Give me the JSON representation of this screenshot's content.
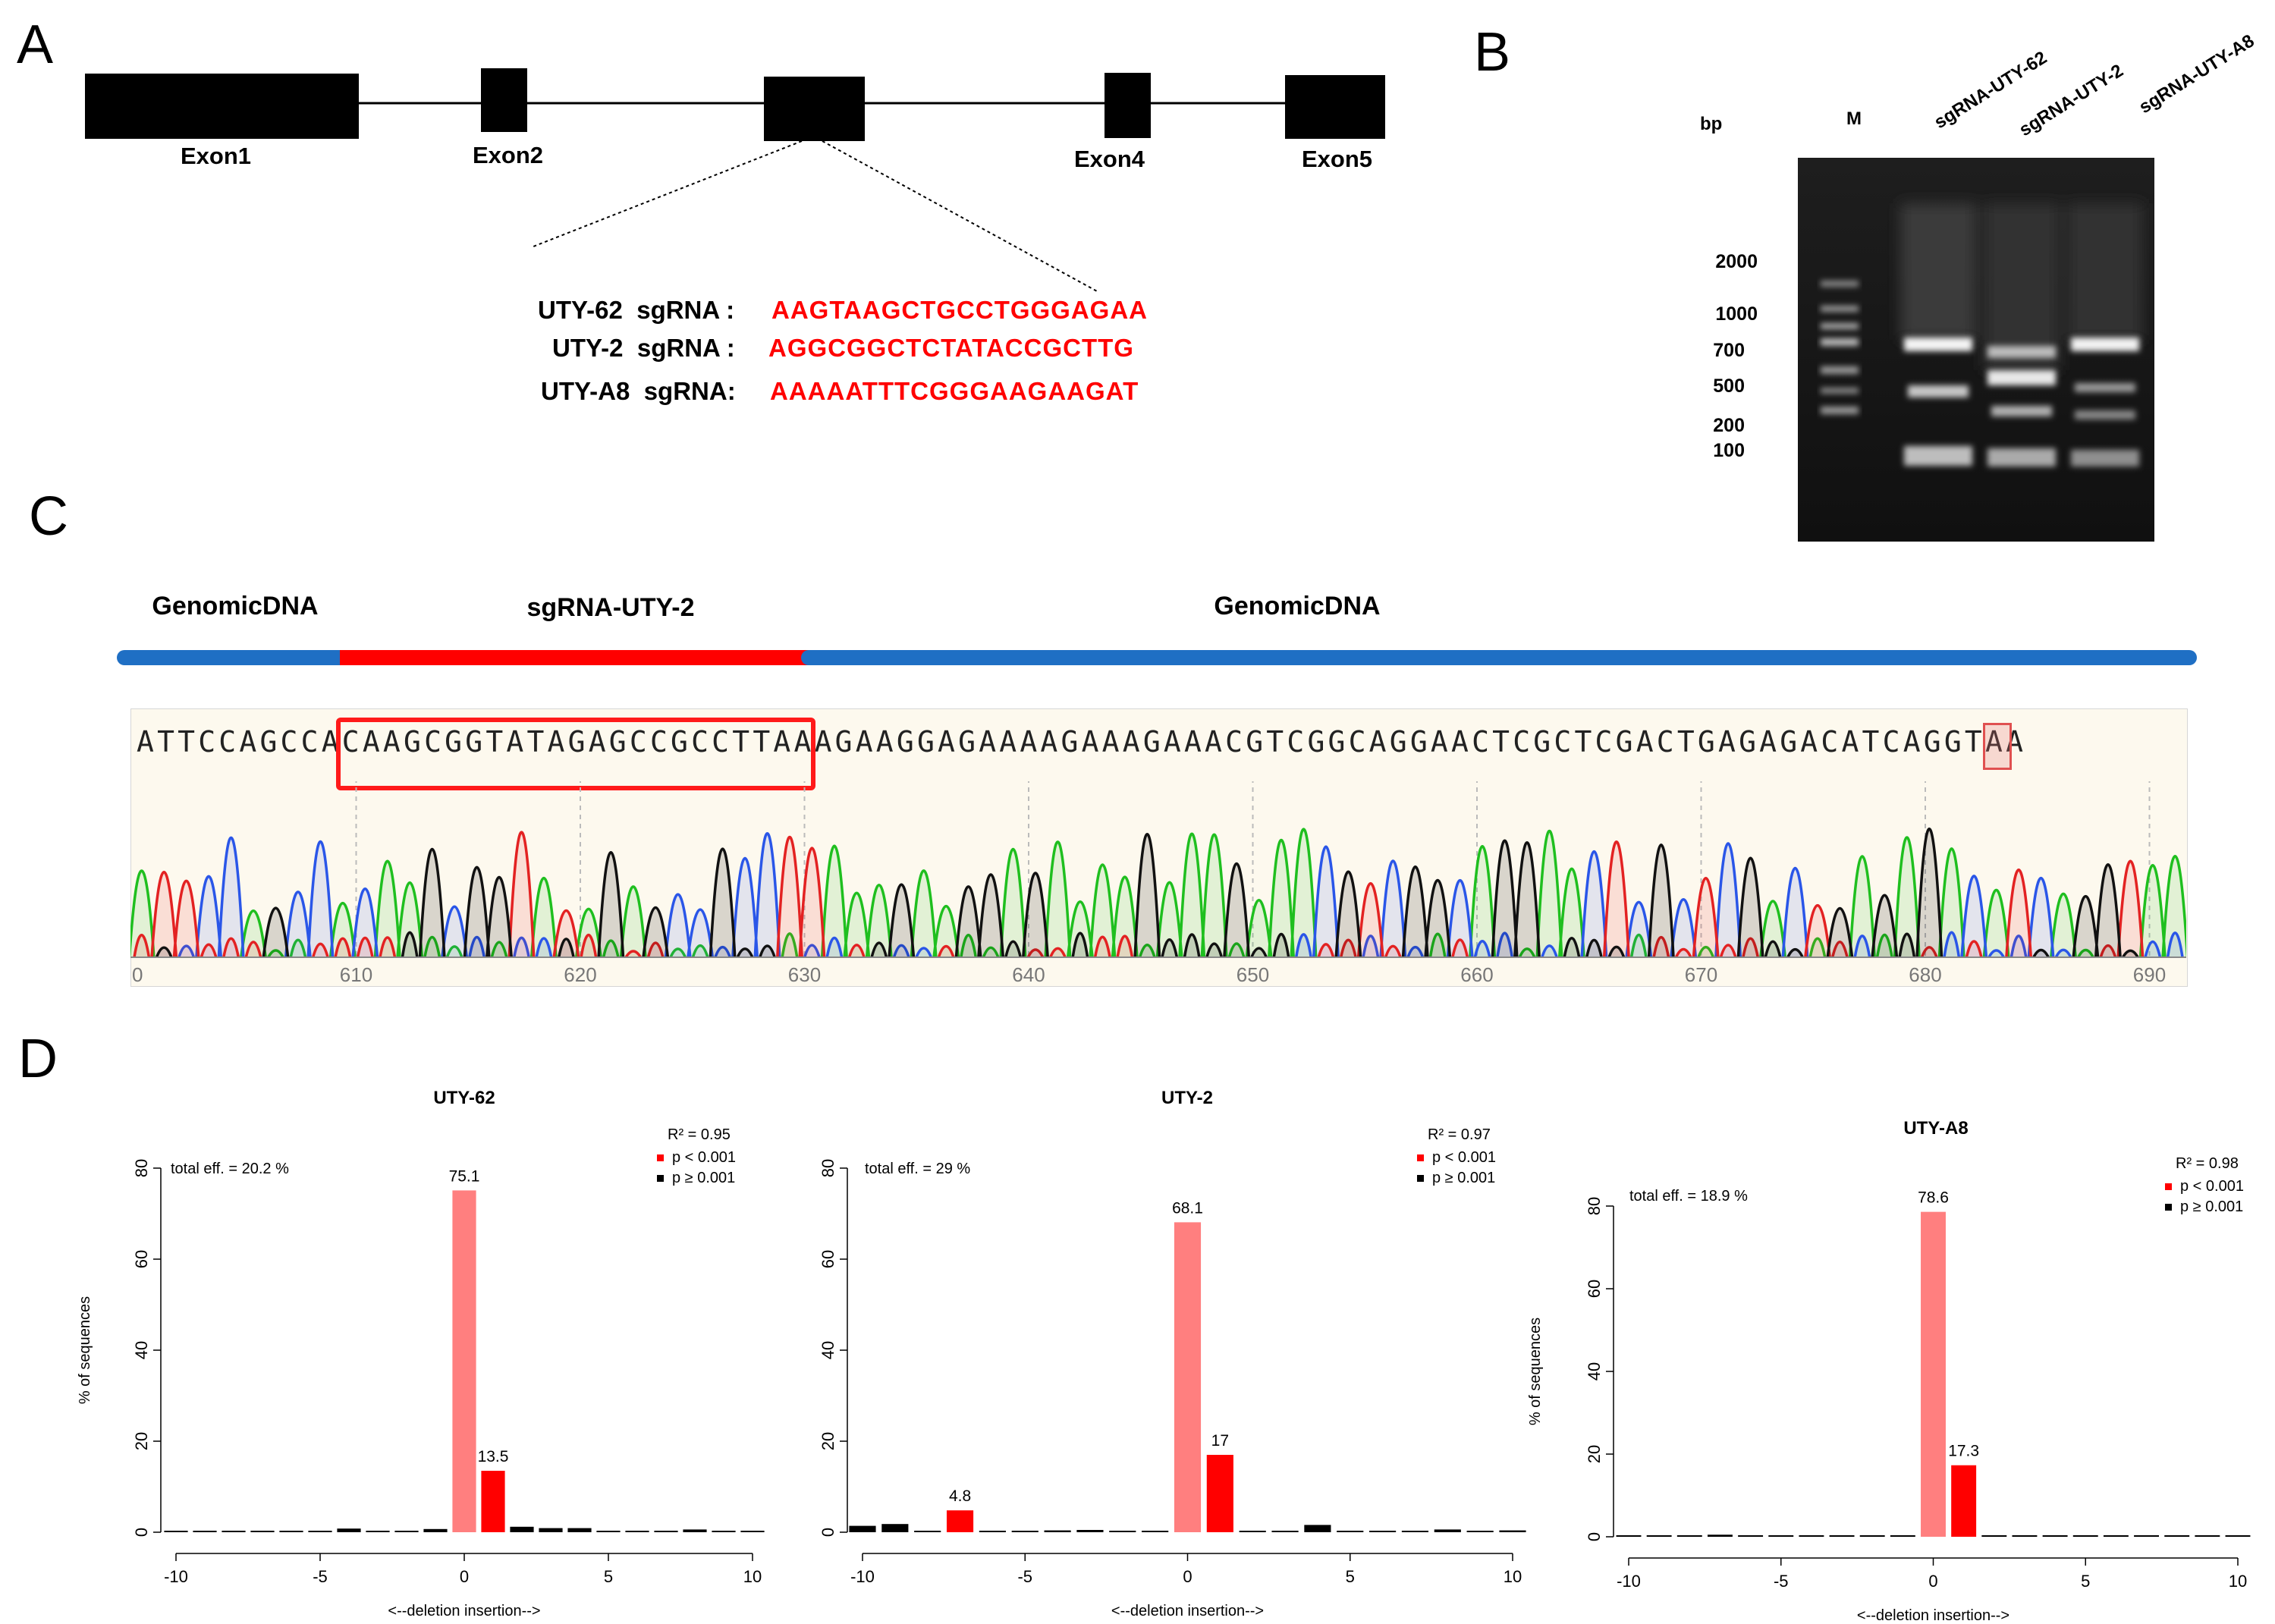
{
  "panels": {
    "a": "A",
    "b": "B",
    "c": "C",
    "d": "D"
  },
  "gene": {
    "exons": [
      "Exon1",
      "Exon2",
      "Exon4",
      "Exon5"
    ],
    "sgrnas": [
      {
        "name": "UTY-62  sgRNA :",
        "seq": "AAGTAAGCTGCCTGGGAGAA"
      },
      {
        "name": "UTY-2  sgRNA :",
        "seq": "AGGCGGCTCTATACCGCTTG"
      },
      {
        "name": "UTY-A8  sgRNA:",
        "seq": "AAAAATTTCGGGAAGAAGAT"
      }
    ]
  },
  "gel": {
    "unit": "bp",
    "ladder": [
      "2000",
      "1000",
      "700",
      "500",
      "200",
      "100"
    ],
    "lanes": [
      "M",
      "sgRNA-UTY-62",
      "sgRNA-UTY-2",
      "sgRNA-UTY-A8"
    ]
  },
  "trace": {
    "regions": [
      "GenomicDNA",
      "sgRNA-UTY-2",
      "GenomicDNA"
    ],
    "sequence": "ATTCCAGCCACAAGCGGTATAGAGCCGCCTTAAAGAAGGAGAAAAGAAAGAAACGTCGGCAGGAACTCGCTCGACTGAGAGACATCAGGTAA",
    "positions": [
      "0",
      "610",
      "620",
      "630",
      "640",
      "650",
      "660",
      "670",
      "680",
      "690"
    ]
  },
  "chart_data": [
    {
      "type": "bar",
      "title": "UTY-62",
      "xlabel": "<--deletion    insertion-->",
      "ylabel": "% of sequences",
      "ylim": [
        0,
        80
      ],
      "xlim": [
        -10,
        10
      ],
      "xticks": [
        "-10",
        "-5",
        "0",
        "5",
        "10"
      ],
      "yticks": [
        "0",
        "20",
        "40",
        "60",
        "80"
      ],
      "total_eff": "total eff. = 20.2 %",
      "r2": "R² = 0.95",
      "legend": [
        "p < 0.001",
        "p ≥ 0.001"
      ],
      "bars": [
        {
          "x": -10,
          "y": 0.3,
          "sig": false
        },
        {
          "x": -9,
          "y": 0.1,
          "sig": false
        },
        {
          "x": -8,
          "y": 0.2,
          "sig": false
        },
        {
          "x": -7,
          "y": 0.1,
          "sig": false
        },
        {
          "x": -6,
          "y": 0.1,
          "sig": false
        },
        {
          "x": -5,
          "y": 0.2,
          "sig": false
        },
        {
          "x": -4,
          "y": 0.8,
          "sig": false
        },
        {
          "x": -3,
          "y": 0.2,
          "sig": false
        },
        {
          "x": -2,
          "y": 0.3,
          "sig": false
        },
        {
          "x": -1,
          "y": 0.7,
          "sig": false
        },
        {
          "x": 0,
          "y": 75.1,
          "sig": true,
          "wt": true,
          "label": "75.1"
        },
        {
          "x": 1,
          "y": 13.5,
          "sig": true,
          "label": "13.5"
        },
        {
          "x": 2,
          "y": 1.2,
          "sig": false
        },
        {
          "x": 3,
          "y": 0.9,
          "sig": false
        },
        {
          "x": 4,
          "y": 0.9,
          "sig": false
        },
        {
          "x": 5,
          "y": 0.1,
          "sig": false
        },
        {
          "x": 6,
          "y": 0.1,
          "sig": false
        },
        {
          "x": 7,
          "y": 0.1,
          "sig": false
        },
        {
          "x": 8,
          "y": 0.6,
          "sig": false
        },
        {
          "x": 9,
          "y": 0.1,
          "sig": false
        },
        {
          "x": 10,
          "y": 0.1,
          "sig": false
        }
      ]
    },
    {
      "type": "bar",
      "title": "UTY-2",
      "xlabel": "<--deletion    insertion-->",
      "ylabel": "",
      "ylim": [
        0,
        80
      ],
      "xlim": [
        -10,
        10
      ],
      "xticks": [
        "-10",
        "-5",
        "0",
        "5",
        "10"
      ],
      "yticks": [
        "0",
        "20",
        "40",
        "60",
        "80"
      ],
      "total_eff": "total eff. = 29 %",
      "r2": "R² = 0.97",
      "legend": [
        "p < 0.001",
        "p ≥ 0.001"
      ],
      "bars": [
        {
          "x": -10,
          "y": 1.4,
          "sig": false
        },
        {
          "x": -9,
          "y": 1.8,
          "sig": false
        },
        {
          "x": -8,
          "y": 0.1,
          "sig": false
        },
        {
          "x": -7,
          "y": 4.8,
          "sig": true,
          "label": "4.8"
        },
        {
          "x": -6,
          "y": 0.1,
          "sig": false
        },
        {
          "x": -5,
          "y": 0.1,
          "sig": false
        },
        {
          "x": -4,
          "y": 0.4,
          "sig": false
        },
        {
          "x": -3,
          "y": 0.5,
          "sig": false
        },
        {
          "x": -2,
          "y": 0.1,
          "sig": false
        },
        {
          "x": -1,
          "y": 0.1,
          "sig": false
        },
        {
          "x": 0,
          "y": 68.1,
          "sig": true,
          "wt": true,
          "label": "68.1"
        },
        {
          "x": 1,
          "y": 17,
          "sig": true,
          "label": "17"
        },
        {
          "x": 2,
          "y": 0.1,
          "sig": false
        },
        {
          "x": 3,
          "y": 0.1,
          "sig": false
        },
        {
          "x": 4,
          "y": 1.6,
          "sig": false
        },
        {
          "x": 5,
          "y": 0.1,
          "sig": false
        },
        {
          "x": 6,
          "y": 0.1,
          "sig": false
        },
        {
          "x": 7,
          "y": 0.1,
          "sig": false
        },
        {
          "x": 8,
          "y": 0.6,
          "sig": false
        },
        {
          "x": 9,
          "y": 0.1,
          "sig": false
        },
        {
          "x": 10,
          "y": 0.4,
          "sig": false
        }
      ]
    },
    {
      "type": "bar",
      "title": "UTY-A8",
      "xlabel": "<--deletion    insertion-->",
      "ylabel": "% of sequences",
      "ylim": [
        0,
        80
      ],
      "xlim": [
        -10,
        10
      ],
      "xticks": [
        "-10",
        "-5",
        "0",
        "5",
        "10"
      ],
      "yticks": [
        "0",
        "20",
        "40",
        "60",
        "80"
      ],
      "total_eff": "total eff. = 18.9 %",
      "r2": "R² = 0.98",
      "legend": [
        "p < 0.001",
        "p ≥ 0.001"
      ],
      "bars": [
        {
          "x": -10,
          "y": 0.1,
          "sig": false
        },
        {
          "x": -9,
          "y": 0.1,
          "sig": false
        },
        {
          "x": -8,
          "y": 0.1,
          "sig": false
        },
        {
          "x": -7,
          "y": 0.5,
          "sig": false
        },
        {
          "x": -6,
          "y": 0.1,
          "sig": false
        },
        {
          "x": -5,
          "y": 0.1,
          "sig": false
        },
        {
          "x": -4,
          "y": 0.1,
          "sig": false
        },
        {
          "x": -3,
          "y": 0.1,
          "sig": false
        },
        {
          "x": -2,
          "y": 0.1,
          "sig": false
        },
        {
          "x": -1,
          "y": 0.1,
          "sig": false
        },
        {
          "x": 0,
          "y": 78.6,
          "sig": true,
          "wt": true,
          "label": "78.6"
        },
        {
          "x": 1,
          "y": 17.3,
          "sig": true,
          "label": "17.3"
        },
        {
          "x": 2,
          "y": 0.1,
          "sig": false
        },
        {
          "x": 3,
          "y": 0.2,
          "sig": false
        },
        {
          "x": 4,
          "y": 0.1,
          "sig": false
        },
        {
          "x": 5,
          "y": 0.1,
          "sig": false
        },
        {
          "x": 6,
          "y": 0.1,
          "sig": false
        },
        {
          "x": 7,
          "y": 0.1,
          "sig": false
        },
        {
          "x": 8,
          "y": 0.1,
          "sig": false
        },
        {
          "x": 9,
          "y": 0.1,
          "sig": false
        },
        {
          "x": 10,
          "y": 0.1,
          "sig": false
        }
      ]
    }
  ]
}
